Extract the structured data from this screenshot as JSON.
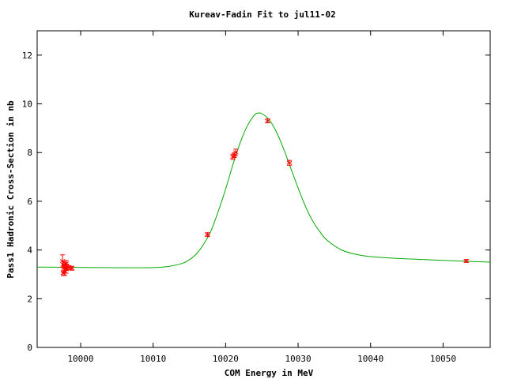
{
  "chart_data": {
    "type": "scatter",
    "title": "Kureav-Fadin Fit to jul11-02",
    "xlabel": "COM Energy in MeV",
    "ylabel": "Pass1 Hadronic Cross-Section in nb",
    "xlim": [
      9994,
      10056.5
    ],
    "ylim": [
      0,
      13
    ],
    "xticks": [
      10000,
      10010,
      10020,
      10030,
      10040,
      10050
    ],
    "yticks": [
      0,
      2,
      4,
      6,
      8,
      10,
      12
    ],
    "grid": false,
    "legend": "none",
    "colors": {
      "data": "#ff0000",
      "fit": "#00aa00",
      "axes": "#000000"
    },
    "series": [
      {
        "style": "points-with-errorbars",
        "points": [
          {
            "x": 9997.5,
            "y": 3.55,
            "err": 0.25
          },
          {
            "x": 9997.6,
            "y": 3.4,
            "err": 0.12
          },
          {
            "x": 9997.7,
            "y": 3.25,
            "err": 0.15
          },
          {
            "x": 9997.8,
            "y": 3.1,
            "err": 0.14
          },
          {
            "x": 9997.9,
            "y": 3.35,
            "err": 0.12
          },
          {
            "x": 9998.0,
            "y": 3.2,
            "err": 0.15
          },
          {
            "x": 9998.1,
            "y": 3.3,
            "err": 0.12
          },
          {
            "x": 9997.6,
            "y": 3.05,
            "err": 0.1
          },
          {
            "x": 9998.0,
            "y": 3.45,
            "err": 0.12
          },
          {
            "x": 9998.4,
            "y": 3.28,
            "err": 0.08
          },
          {
            "x": 9998.8,
            "y": 3.25,
            "err": 0.08
          },
          {
            "x": 10017.5,
            "y": 4.63,
            "err": 0.08
          },
          {
            "x": 10021.0,
            "y": 7.82,
            "err": 0.1
          },
          {
            "x": 10021.2,
            "y": 7.9,
            "err": 0.1
          },
          {
            "x": 10021.4,
            "y": 8.02,
            "err": 0.12
          },
          {
            "x": 10025.8,
            "y": 9.3,
            "err": 0.08
          },
          {
            "x": 10028.8,
            "y": 7.58,
            "err": 0.1
          },
          {
            "x": 10053.2,
            "y": 3.55,
            "err": 0.06
          }
        ]
      },
      {
        "style": "line",
        "x": [
          9994,
          9998,
          10002,
          10006,
          10010,
          10012,
          10014,
          10015,
          10016,
          10017,
          10018,
          10019,
          10020,
          10021,
          10022,
          10023,
          10024,
          10024.5,
          10025,
          10026,
          10027,
          10028,
          10029,
          10030,
          10031,
          10032,
          10033,
          10034,
          10036,
          10038,
          10040,
          10044,
          10048,
          10052,
          10056.5
        ],
        "y": [
          3.3,
          3.29,
          3.28,
          3.27,
          3.28,
          3.32,
          3.45,
          3.6,
          3.85,
          4.25,
          4.8,
          5.6,
          6.5,
          7.5,
          8.4,
          9.1,
          9.55,
          9.62,
          9.6,
          9.35,
          8.85,
          8.15,
          7.35,
          6.55,
          5.8,
          5.2,
          4.75,
          4.4,
          4.0,
          3.82,
          3.73,
          3.65,
          3.6,
          3.55,
          3.5
        ]
      }
    ]
  }
}
